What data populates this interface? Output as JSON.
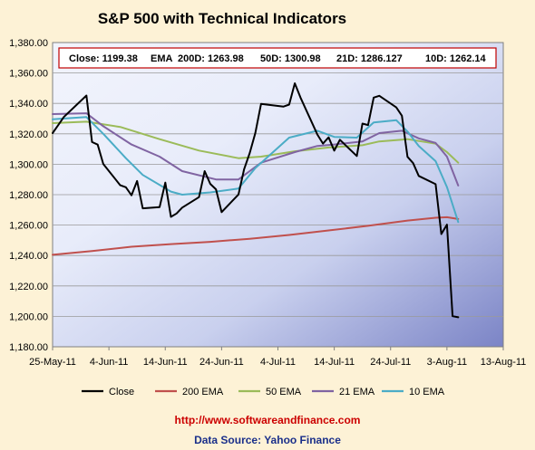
{
  "chart_data": {
    "type": "line",
    "title": "S&P 500 with Technical Indicators",
    "info_box": {
      "close": "Close: 1199.38",
      "ema_label": "EMA",
      "ema200": "200D: 1263.98",
      "ema50": "50D: 1300.98",
      "ema21": "21D: 1286.127",
      "ema10": "10D: 1262.14"
    },
    "ylim": [
      1180,
      1380
    ],
    "yticks": [
      1180,
      1200,
      1220,
      1240,
      1260,
      1280,
      1300,
      1320,
      1340,
      1360,
      1380
    ],
    "ytick_labels": [
      "1,180.00",
      "1,200.00",
      "1,220.00",
      "1,240.00",
      "1,260.00",
      "1,280.00",
      "1,300.00",
      "1,320.00",
      "1,340.00",
      "1,360.00",
      "1,380.00"
    ],
    "x_dates": [
      "2011-05-25",
      "2011-08-13"
    ],
    "xtick_labels": [
      "25-May-11",
      "4-Jun-11",
      "14-Jun-11",
      "24-Jun-11",
      "4-Jul-11",
      "14-Jul-11",
      "24-Jul-11",
      "3-Aug-11",
      "13-Aug-11"
    ],
    "grid": true,
    "legend_position": "bottom",
    "series": [
      {
        "name": "Close",
        "color": "#000000",
        "width": 2,
        "x": [
          "2011-05-25",
          "2011-05-26",
          "2011-05-27",
          "2011-05-31",
          "2011-06-01",
          "2011-06-02",
          "2011-06-03",
          "2011-06-06",
          "2011-06-07",
          "2011-06-08",
          "2011-06-09",
          "2011-06-10",
          "2011-06-13",
          "2011-06-14",
          "2011-06-15",
          "2011-06-16",
          "2011-06-17",
          "2011-06-20",
          "2011-06-21",
          "2011-06-22",
          "2011-06-23",
          "2011-06-24",
          "2011-06-27",
          "2011-06-28",
          "2011-06-29",
          "2011-06-30",
          "2011-07-01",
          "2011-07-05",
          "2011-07-06",
          "2011-07-07",
          "2011-07-08",
          "2011-07-11",
          "2011-07-12",
          "2011-07-13",
          "2011-07-14",
          "2011-07-15",
          "2011-07-18",
          "2011-07-19",
          "2011-07-20",
          "2011-07-21",
          "2011-07-22",
          "2011-07-25",
          "2011-07-26",
          "2011-07-27",
          "2011-07-28",
          "2011-07-29",
          "2011-08-01",
          "2011-08-02",
          "2011-08-03",
          "2011-08-04",
          "2011-08-05"
        ],
        "values": [
          1320.5,
          1325.7,
          1331.1,
          1345.2,
          1314.6,
          1312.9,
          1300.2,
          1286.2,
          1284.9,
          1279.6,
          1289.0,
          1271.0,
          1271.8,
          1287.9,
          1265.4,
          1267.6,
          1271.5,
          1278.4,
          1295.5,
          1287.1,
          1283.5,
          1268.5,
          1280.1,
          1296.7,
          1307.4,
          1320.6,
          1339.7,
          1337.9,
          1339.2,
          1353.2,
          1343.8,
          1319.5,
          1313.6,
          1317.7,
          1308.9,
          1316.1,
          1305.4,
          1326.7,
          1325.8,
          1343.8,
          1345.0,
          1337.4,
          1331.9,
          1304.9,
          1300.7,
          1292.3,
          1286.9,
          1254.1,
          1260.3,
          1200.1,
          1199.4
        ]
      },
      {
        "name": "200 EMA",
        "color": "#c0504d",
        "width": 2,
        "x": [
          "2011-05-25",
          "2011-06-01",
          "2011-06-08",
          "2011-06-15",
          "2011-06-22",
          "2011-06-29",
          "2011-07-06",
          "2011-07-13",
          "2011-07-20",
          "2011-07-27",
          "2011-08-01",
          "2011-08-03",
          "2011-08-05"
        ],
        "values": [
          1240.5,
          1243.0,
          1245.8,
          1247.5,
          1249.0,
          1251.0,
          1253.5,
          1256.5,
          1259.5,
          1263.0,
          1264.8,
          1265.2,
          1264.0
        ]
      },
      {
        "name": "50 EMA",
        "color": "#9bbb59",
        "width": 2,
        "x": [
          "2011-05-25",
          "2011-05-31",
          "2011-06-06",
          "2011-06-13",
          "2011-06-20",
          "2011-06-27",
          "2011-07-01",
          "2011-07-07",
          "2011-07-13",
          "2011-07-19",
          "2011-07-22",
          "2011-07-27",
          "2011-08-01",
          "2011-08-03",
          "2011-08-05"
        ],
        "values": [
          1327.0,
          1328.0,
          1324.5,
          1316.5,
          1309.0,
          1304.0,
          1305.0,
          1308.5,
          1311.0,
          1312.5,
          1315.0,
          1316.5,
          1313.5,
          1308.0,
          1301.0
        ]
      },
      {
        "name": "21 EMA",
        "color": "#8064a2",
        "width": 2,
        "x": [
          "2011-05-25",
          "2011-05-31",
          "2011-06-03",
          "2011-06-08",
          "2011-06-13",
          "2011-06-17",
          "2011-06-23",
          "2011-06-27",
          "2011-07-01",
          "2011-07-07",
          "2011-07-11",
          "2011-07-14",
          "2011-07-19",
          "2011-07-22",
          "2011-07-26",
          "2011-07-29",
          "2011-08-01",
          "2011-08-03",
          "2011-08-05"
        ],
        "values": [
          1333.0,
          1333.5,
          1325.0,
          1313.0,
          1305.0,
          1295.5,
          1290.0,
          1290.0,
          1301.0,
          1308.0,
          1312.0,
          1313.0,
          1315.0,
          1320.5,
          1322.0,
          1317.0,
          1314.0,
          1305.0,
          1286.0
        ]
      },
      {
        "name": "10 EMA",
        "color": "#4bacc6",
        "width": 2,
        "x": [
          "2011-05-25",
          "2011-05-31",
          "2011-06-03",
          "2011-06-07",
          "2011-06-10",
          "2011-06-15",
          "2011-06-17",
          "2011-06-22",
          "2011-06-27",
          "2011-06-30",
          "2011-07-06",
          "2011-07-11",
          "2011-07-14",
          "2011-07-18",
          "2011-07-21",
          "2011-07-25",
          "2011-07-27",
          "2011-07-29",
          "2011-08-01",
          "2011-08-03",
          "2011-08-05"
        ],
        "values": [
          1329.5,
          1331.0,
          1320.0,
          1304.0,
          1293.0,
          1282.0,
          1280.0,
          1281.5,
          1284.0,
          1297.5,
          1317.5,
          1322.0,
          1318.0,
          1317.5,
          1327.5,
          1329.0,
          1321.5,
          1312.0,
          1302.0,
          1285.0,
          1262.0
        ]
      }
    ]
  },
  "footer": {
    "url": "http://www.softwareandfinance.com",
    "source": "Data Source: Yahoo Finance"
  }
}
